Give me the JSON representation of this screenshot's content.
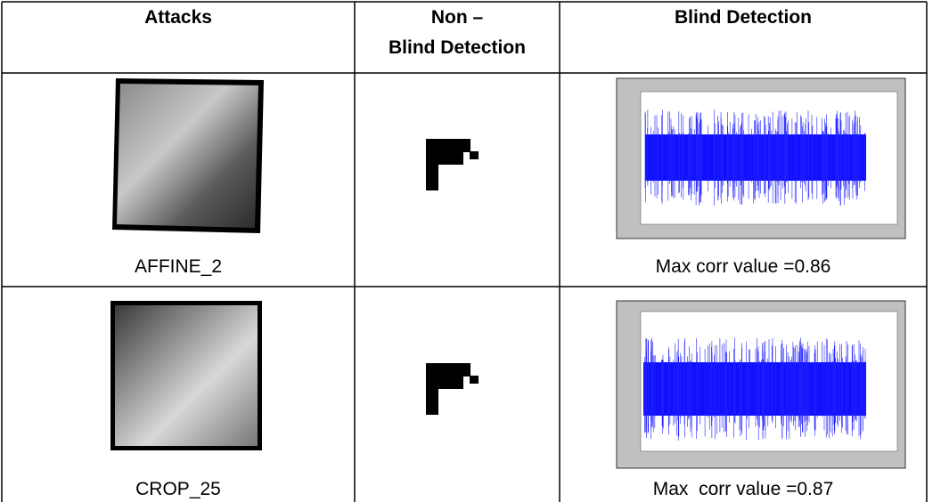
{
  "table": {
    "header": [
      "Attacks",
      [
        "Non –",
        "Blind Detection"
      ],
      "Blind Detection"
    ],
    "rows": [
      {
        "attack": "AFFINE_2",
        "result": "Max corr value =0.86"
      },
      {
        "attack": "CROP_25",
        "result": "Max  corr value =0.87"
      }
    ]
  }
}
